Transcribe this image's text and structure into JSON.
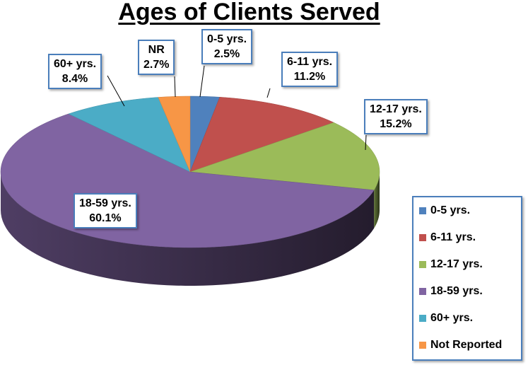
{
  "chart_data": {
    "type": "pie",
    "title": "Ages of Clients Served",
    "slices": [
      {
        "label": "0-5 yrs.",
        "short_label": "0-5 yrs.",
        "value": 2.5,
        "value_label": "2.5%",
        "color": "#4f81bd"
      },
      {
        "label": "6-11 yrs.",
        "short_label": "6-11 yrs.",
        "value": 11.2,
        "value_label": "11.2%",
        "color": "#c0504d"
      },
      {
        "label": "12-17 yrs.",
        "short_label": "12-17 yrs.",
        "value": 15.2,
        "value_label": "15.2%",
        "color": "#9bbb59"
      },
      {
        "label": "18-59 yrs.",
        "short_label": "18-59 yrs.",
        "value": 60.1,
        "value_label": "60.1%",
        "color": "#8064a2"
      },
      {
        "label": "60+ yrs.",
        "short_label": "60+ yrs.",
        "value": 8.4,
        "value_label": "8.4%",
        "color": "#4bacc6"
      },
      {
        "label": "Not Reported",
        "short_label": "NR",
        "value": 2.7,
        "value_label": "2.7%",
        "color": "#f79646"
      }
    ],
    "legend_position": "right"
  }
}
